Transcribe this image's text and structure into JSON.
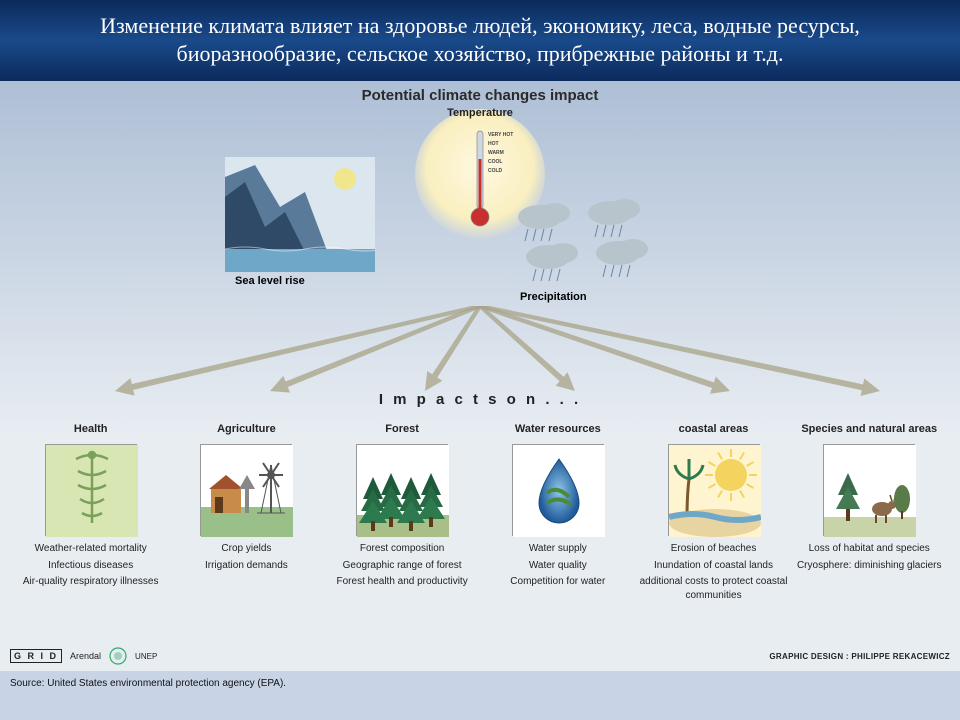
{
  "header": {
    "text": "Изменение климата влияет на здоровье людей, экономику, леса, водные ресурсы, биоразнообразие, сельское хозяйство, прибрежные районы и т.д.",
    "bg_gradient": [
      "#0b2a5c",
      "#1a4a8a",
      "#0b2a5c"
    ],
    "text_color": "#ffffff",
    "fontsize": 22
  },
  "diagram": {
    "bg_gradient_top": "#aebfd6",
    "bg_gradient_bottom": "#e8edf2",
    "subtitle": "Potential climate changes impact",
    "subtitle_fontsize": 15,
    "top": {
      "temperature": {
        "label": "Temperature",
        "glow_color": "#f9efc0",
        "scale": [
          "VERY HOT",
          "HOT",
          "WARM",
          "COOL",
          "COLD"
        ],
        "mercury_color": "#c83030",
        "tube_color": "#cfd8e2"
      },
      "sealevel": {
        "label": "Sea level rise",
        "mountain_color": "#5a7a9a",
        "mountain_dark": "#2f4a66",
        "water_color": "#6fa7c9",
        "sun_color": "#f0e68c",
        "sky_color": "#dbe6ef"
      },
      "precipitation": {
        "label": "Precipitation",
        "cloud_color": "#b8c4cc",
        "rain_color": "#6a8aa8"
      }
    },
    "arrows": {
      "color": "#a8a488",
      "count": 6
    },
    "impacts_title": "I m p a c t s   o n . . .",
    "impacts": [
      {
        "title": "Health",
        "icon": "caduceus",
        "icon_bg": "#d8e6b4",
        "icon_fg": "#7ba05b",
        "items": [
          "Weather-related mortality",
          "Infectious diseases",
          "Air-quality respiratory illnesses"
        ]
      },
      {
        "title": "Agriculture",
        "icon": "farm",
        "icon_bg": "#ffffff",
        "items": [
          "Crop yields",
          "Irrigation demands"
        ]
      },
      {
        "title": "Forest",
        "icon": "forest",
        "icon_bg": "#ffffff",
        "items": [
          "Forest composition",
          "Geographic range of forest",
          "Forest health and productivity"
        ]
      },
      {
        "title": "Water resources",
        "icon": "water",
        "icon_bg": "#ffffff",
        "items": [
          "Water supply",
          "Water quality",
          "Competition for water"
        ]
      },
      {
        "title": "coastal areas",
        "icon": "coast",
        "icon_bg": "#fff4d0",
        "items": [
          "Erosion of beaches",
          "Inundation of coastal lands",
          "additional costs to protect coastal communities"
        ]
      },
      {
        "title": "Species and natural areas",
        "icon": "species",
        "icon_bg": "#ffffff",
        "items": [
          "Loss of habitat and species",
          "Cryosphere: diminishing glaciers"
        ]
      }
    ]
  },
  "footer": {
    "grid_label": "G R I D",
    "arendal": "Arendal",
    "unep": "UNEP",
    "source": "Source: United States environmental protection agency (EPA).",
    "designer": "GRAPHIC DESIGN : PHILIPPE REKACEWICZ"
  }
}
